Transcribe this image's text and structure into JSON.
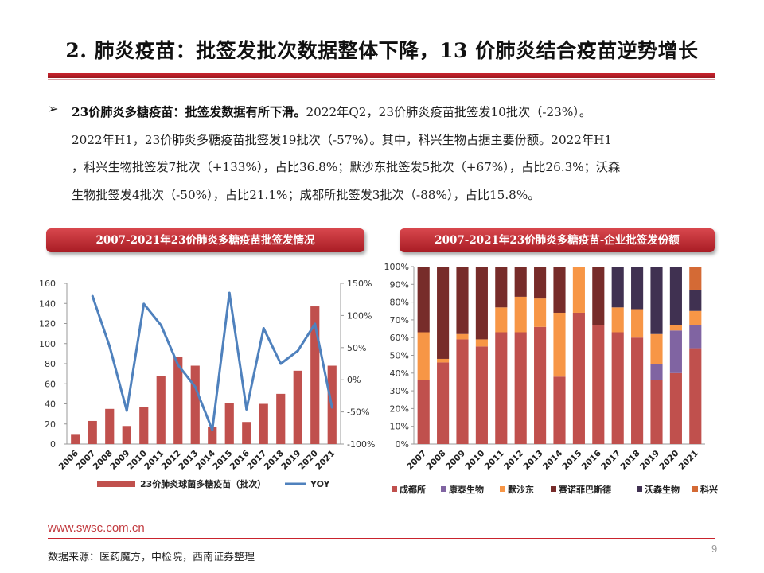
{
  "title": "2. 肺炎疫苗：批签发批次数据整体下降，13 价肺炎结合疫苗逆势增长",
  "bullet": {
    "lead": "23价肺炎多糖疫苗：批签发数据有所下滑。",
    "line1_rest": "2022年Q2，23价肺炎疫苗批签发10批次（-23%）。",
    "line2": "2022年H1，23价肺炎多糖疫苗批签发19批次（-57%）。其中，科兴生物占据主要份额。2022年H1",
    "line3": "，科兴生物批签发7批次（+133%），占比36.8%；默沙东批签发5批次（+67%），占比26.3%；沃森",
    "line4": "生物批签发4批次（-50%），占比21.1%；成都所批签发3批次（-88%），占比15.8%。"
  },
  "chart_data": [
    {
      "type": "bar",
      "title": "2007-2021年23价肺炎多糖疫苗批签发情况",
      "categories": [
        "2006",
        "2007",
        "2008",
        "2009",
        "2010",
        "2011",
        "2012",
        "2013",
        "2014",
        "2015",
        "2016",
        "2017",
        "2018",
        "2019",
        "2020",
        "2021"
      ],
      "series": [
        {
          "name": "23价肺炎球菌多糖疫苗（批次）",
          "kind": "bar",
          "axis": "left",
          "color": "#c0504d",
          "values": [
            10,
            23,
            35,
            18,
            37,
            68,
            87,
            78,
            17,
            41,
            22,
            40,
            50,
            73,
            137,
            78
          ]
        },
        {
          "name": "YOY",
          "kind": "line",
          "axis": "right",
          "color": "#4f81bd",
          "values": [
            null,
            130,
            52,
            -48,
            118,
            85,
            23,
            -11,
            -78,
            135,
            -46,
            80,
            25,
            45,
            87,
            -43
          ]
        }
      ],
      "ylim_left": [
        0,
        160
      ],
      "yticks_left": [
        "0",
        "20",
        "40",
        "60",
        "80",
        "100",
        "120",
        "140",
        "160"
      ],
      "ylim_right": [
        -100,
        150
      ],
      "yticks_right": [
        "-100%",
        "-50%",
        "0%",
        "50%",
        "100%",
        "150%"
      ]
    },
    {
      "type": "bar",
      "stacked": "percent",
      "title": "2007-2021年23价肺炎多糖疫苗-企业批签发份额",
      "categories": [
        "2007",
        "2008",
        "2009",
        "2010",
        "2011",
        "2012",
        "2013",
        "2014",
        "2015",
        "2016",
        "2017",
        "2018",
        "2019",
        "2020",
        "2021"
      ],
      "series": [
        {
          "name": "成都所",
          "color": "#c0504d",
          "values": [
            36,
            46,
            59,
            55,
            63,
            63,
            66,
            38,
            74,
            67,
            63,
            60,
            36,
            40,
            54
          ]
        },
        {
          "name": "康泰生物",
          "color": "#8064a2",
          "values": [
            0,
            0,
            0,
            0,
            0,
            0,
            0,
            0,
            0,
            0,
            0,
            0,
            9,
            24,
            13
          ]
        },
        {
          "name": "默沙东",
          "color": "#f79646",
          "values": [
            27,
            2,
            3,
            4,
            14,
            20,
            16,
            36,
            26,
            0,
            14,
            16,
            17,
            3,
            8
          ]
        },
        {
          "name": "赛诺菲巴斯德",
          "color": "#772c2a",
          "values": [
            37,
            52,
            38,
            41,
            23,
            17,
            18,
            26,
            0,
            33,
            0,
            0,
            0,
            0,
            0
          ]
        },
        {
          "name": "沃森生物",
          "color": "#403151",
          "values": [
            0,
            0,
            0,
            0,
            0,
            0,
            0,
            0,
            0,
            0,
            23,
            24,
            38,
            33,
            12
          ]
        },
        {
          "name": "科兴",
          "color": "#d46a35",
          "values": [
            0,
            0,
            0,
            0,
            0,
            0,
            0,
            0,
            0,
            0,
            0,
            0,
            0,
            0,
            13
          ]
        }
      ],
      "yticks": [
        "0%",
        "10%",
        "20%",
        "30%",
        "40%",
        "50%",
        "60%",
        "70%",
        "80%",
        "90%",
        "100%"
      ],
      "ylim": [
        0,
        100
      ]
    }
  ],
  "footer": {
    "url": "www.swsc.com.cn",
    "page": "9",
    "source": "数据来源：医药魔方，中检院，西南证券整理"
  }
}
